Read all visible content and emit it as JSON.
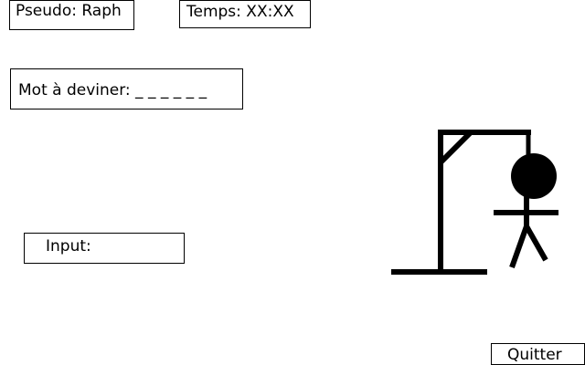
{
  "header": {
    "pseudo_text": "Pseudo: Raph",
    "temps_text": "Temps: XX:XX"
  },
  "word": {
    "label_text": "Mot à deviner: _ _ _ _ _ _"
  },
  "input": {
    "label": "Input:",
    "value": ""
  },
  "footer": {
    "quit_label": "Quitter"
  },
  "hangman": {
    "color": "#000000"
  }
}
